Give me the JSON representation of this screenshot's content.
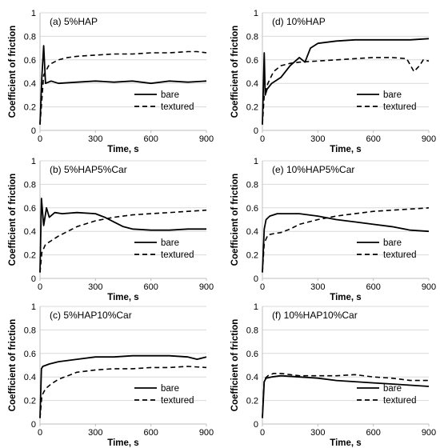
{
  "figure": {
    "shared": {
      "xlabel": "Time, s",
      "ylabel": "Coefficient of friction",
      "xticks": [
        "0",
        "300",
        "600",
        "900"
      ],
      "yticks": [
        "0",
        "0.2",
        "0.4",
        "0.6",
        "0.8",
        "1"
      ],
      "legend": [
        "bare",
        "textured"
      ],
      "line_color": "#000000"
    }
  },
  "chart_data": [
    {
      "type": "line",
      "title": "(a) 5%HAP",
      "xlabel": "Time, s",
      "ylabel": "Coefficient of friction",
      "xlim": [
        0,
        900
      ],
      "ylim": [
        0,
        1
      ],
      "grid": "horizontal",
      "legend_position": "bottom-right",
      "series": [
        {
          "name": "bare",
          "style": "solid",
          "x": [
            0,
            10,
            20,
            30,
            60,
            100,
            200,
            300,
            400,
            500,
            600,
            700,
            800,
            900
          ],
          "y": [
            0.05,
            0.45,
            0.72,
            0.4,
            0.42,
            0.4,
            0.41,
            0.42,
            0.41,
            0.42,
            0.4,
            0.42,
            0.41,
            0.42
          ]
        },
        {
          "name": "textured",
          "style": "dashed",
          "x": [
            0,
            20,
            50,
            100,
            150,
            200,
            300,
            400,
            500,
            600,
            700,
            800,
            850,
            900
          ],
          "y": [
            0.05,
            0.47,
            0.56,
            0.6,
            0.62,
            0.63,
            0.64,
            0.65,
            0.65,
            0.66,
            0.66,
            0.67,
            0.67,
            0.66
          ]
        }
      ]
    },
    {
      "type": "line",
      "title": "(d) 10%HAP",
      "xlabel": "Time, s",
      "ylabel": "Coefficient of friction",
      "xlim": [
        0,
        900
      ],
      "ylim": [
        0,
        1
      ],
      "grid": "horizontal",
      "legend_position": "bottom-right",
      "series": [
        {
          "name": "bare",
          "style": "solid",
          "x": [
            0,
            10,
            15,
            25,
            50,
            100,
            150,
            200,
            230,
            260,
            300,
            400,
            500,
            600,
            700,
            800,
            900
          ],
          "y": [
            0.05,
            0.66,
            0.3,
            0.35,
            0.4,
            0.45,
            0.55,
            0.62,
            0.58,
            0.7,
            0.74,
            0.76,
            0.77,
            0.77,
            0.77,
            0.77,
            0.78
          ]
        },
        {
          "name": "textured",
          "style": "dashed",
          "x": [
            0,
            10,
            30,
            60,
            100,
            150,
            200,
            300,
            400,
            500,
            600,
            700,
            780,
            820,
            850,
            870,
            900
          ],
          "y": [
            0.05,
            0.3,
            0.4,
            0.5,
            0.55,
            0.57,
            0.58,
            0.59,
            0.6,
            0.61,
            0.62,
            0.62,
            0.61,
            0.5,
            0.55,
            0.6,
            0.59
          ]
        }
      ]
    },
    {
      "type": "line",
      "title": "(b) 5%HAP5%Car",
      "xlabel": "Time, s",
      "ylabel": "Coefficient of friction",
      "xlim": [
        0,
        900
      ],
      "ylim": [
        0,
        1
      ],
      "grid": "horizontal",
      "legend_position": "bottom-right",
      "series": [
        {
          "name": "bare",
          "style": "solid",
          "x": [
            0,
            8,
            20,
            35,
            50,
            80,
            120,
            200,
            300,
            350,
            400,
            450,
            500,
            600,
            700,
            800,
            900
          ],
          "y": [
            0.05,
            0.68,
            0.45,
            0.6,
            0.52,
            0.56,
            0.55,
            0.56,
            0.55,
            0.52,
            0.48,
            0.44,
            0.42,
            0.41,
            0.41,
            0.42,
            0.42
          ]
        },
        {
          "name": "textured",
          "style": "dashed",
          "x": [
            0,
            10,
            30,
            60,
            100,
            150,
            200,
            300,
            400,
            500,
            600,
            700,
            800,
            900
          ],
          "y": [
            0.05,
            0.22,
            0.29,
            0.32,
            0.36,
            0.4,
            0.44,
            0.49,
            0.52,
            0.54,
            0.55,
            0.56,
            0.57,
            0.58
          ]
        }
      ]
    },
    {
      "type": "line",
      "title": "(e) 10%HAP5%Car",
      "xlabel": "Time, s",
      "ylabel": "Coefficient of friction",
      "xlim": [
        0,
        900
      ],
      "ylim": [
        0,
        1
      ],
      "grid": "horizontal",
      "legend_position": "bottom-right",
      "series": [
        {
          "name": "bare",
          "style": "solid",
          "x": [
            0,
            10,
            20,
            40,
            80,
            150,
            200,
            300,
            400,
            500,
            600,
            700,
            800,
            900
          ],
          "y": [
            0.05,
            0.42,
            0.5,
            0.53,
            0.55,
            0.55,
            0.55,
            0.53,
            0.5,
            0.48,
            0.46,
            0.44,
            0.41,
            0.4
          ]
        },
        {
          "name": "textured",
          "style": "dashed",
          "x": [
            0,
            10,
            30,
            60,
            100,
            150,
            200,
            300,
            400,
            500,
            600,
            700,
            800,
            900
          ],
          "y": [
            0.05,
            0.3,
            0.37,
            0.38,
            0.39,
            0.42,
            0.46,
            0.5,
            0.53,
            0.55,
            0.57,
            0.58,
            0.59,
            0.6
          ]
        }
      ]
    },
    {
      "type": "line",
      "title": "(c) 5%HAP10%Car",
      "xlabel": "Time, s",
      "ylabel": "Coefficient of friction",
      "xlim": [
        0,
        900
      ],
      "ylim": [
        0,
        1
      ],
      "grid": "horizontal",
      "legend_position": "bottom-right",
      "series": [
        {
          "name": "bare",
          "style": "solid",
          "x": [
            0,
            8,
            15,
            50,
            100,
            200,
            300,
            400,
            500,
            600,
            700,
            800,
            850,
            900
          ],
          "y": [
            0.05,
            0.47,
            0.49,
            0.51,
            0.53,
            0.55,
            0.57,
            0.57,
            0.58,
            0.58,
            0.58,
            0.57,
            0.55,
            0.57
          ]
        },
        {
          "name": "textured",
          "style": "dashed",
          "x": [
            0,
            10,
            30,
            60,
            100,
            150,
            200,
            300,
            400,
            500,
            600,
            700,
            800,
            900
          ],
          "y": [
            0.05,
            0.24,
            0.3,
            0.34,
            0.38,
            0.41,
            0.44,
            0.46,
            0.47,
            0.47,
            0.48,
            0.48,
            0.49,
            0.48
          ]
        }
      ]
    },
    {
      "type": "line",
      "title": "(f) 10%HAP10%Car",
      "xlabel": "Time, s",
      "ylabel": "Coefficient of friction",
      "xlim": [
        0,
        900
      ],
      "ylim": [
        0,
        1
      ],
      "grid": "horizontal",
      "legend_position": "bottom-right",
      "series": [
        {
          "name": "bare",
          "style": "solid",
          "x": [
            0,
            10,
            20,
            50,
            100,
            200,
            300,
            400,
            500,
            600,
            700,
            800,
            900
          ],
          "y": [
            0.05,
            0.36,
            0.39,
            0.4,
            0.41,
            0.4,
            0.39,
            0.37,
            0.36,
            0.35,
            0.34,
            0.33,
            0.32
          ]
        },
        {
          "name": "textured",
          "style": "dashed",
          "x": [
            0,
            10,
            30,
            60,
            100,
            150,
            200,
            300,
            400,
            500,
            600,
            700,
            800,
            900
          ],
          "y": [
            0.05,
            0.38,
            0.41,
            0.43,
            0.43,
            0.42,
            0.41,
            0.41,
            0.41,
            0.42,
            0.4,
            0.39,
            0.37,
            0.37
          ]
        }
      ]
    }
  ]
}
